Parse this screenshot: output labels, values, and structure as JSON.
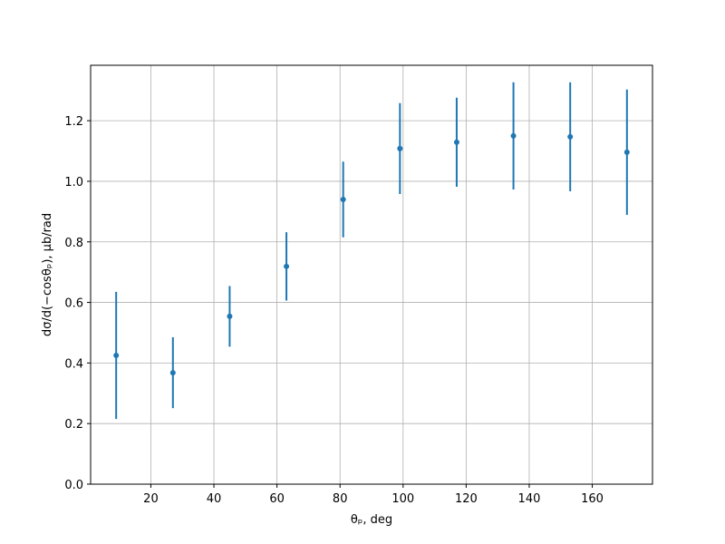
{
  "chart_data": {
    "type": "errorbar",
    "xlabel": "θₚ, deg",
    "ylabel": "dσ/d(−cosθₚ), μb/rad",
    "x": [
      9,
      27,
      45,
      63,
      81,
      99,
      117,
      135,
      153,
      171
    ],
    "series": [
      {
        "color": "#1f77b4",
        "values": [
          0.425,
          0.368,
          0.554,
          0.719,
          0.94,
          1.108,
          1.129,
          1.15,
          1.147,
          1.096
        ],
        "errors": [
          0.21,
          0.117,
          0.1,
          0.113,
          0.125,
          0.15,
          0.147,
          0.177,
          0.18,
          0.207
        ]
      }
    ],
    "xlim": [
      0.9,
      179.1
    ],
    "xticks": [
      20,
      40,
      60,
      80,
      100,
      120,
      140,
      160
    ],
    "ylim": [
      0,
      1.383
    ],
    "yticks": [
      {
        "value": 0,
        "label": "0.0"
      },
      {
        "value": 0.2,
        "label": "0.2"
      },
      {
        "value": 0.4,
        "label": "0.4"
      },
      {
        "value": 0.6,
        "label": "0.6"
      },
      {
        "value": 0.8,
        "label": "0.8"
      },
      {
        "value": 1.0,
        "label": "1.0"
      },
      {
        "value": 1.2,
        "label": "1.2"
      }
    ],
    "grid": true
  }
}
